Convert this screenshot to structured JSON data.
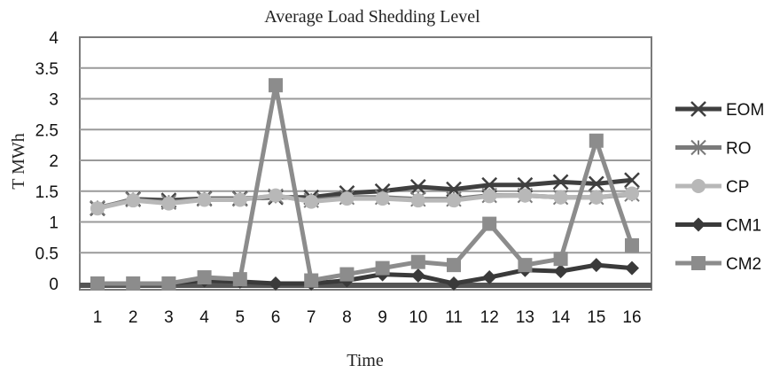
{
  "chart_data": {
    "type": "line",
    "title": "Average Load Shedding Level",
    "xlabel": "Time",
    "ylabel": "T MWh",
    "x": [
      "1",
      "2",
      "3",
      "4",
      "5",
      "6",
      "7",
      "8",
      "9",
      "10",
      "11",
      "12",
      "13",
      "14",
      "15",
      "16"
    ],
    "yticks": [
      "0",
      "0.5",
      "1",
      "1.5",
      "2",
      "2.5",
      "3",
      "3.5",
      "4"
    ],
    "ylim": [
      0,
      4
    ],
    "grid": true,
    "legend_position": "right",
    "series": [
      {
        "name": "EOM",
        "marker": "x",
        "color": "#3f3f3f",
        "values": [
          1.22,
          1.37,
          1.35,
          1.38,
          1.38,
          1.4,
          1.4,
          1.47,
          1.5,
          1.57,
          1.53,
          1.6,
          1.6,
          1.65,
          1.62,
          1.68
        ]
      },
      {
        "name": "RO",
        "marker": "star",
        "color": "#7a7a7a",
        "values": [
          1.23,
          1.36,
          1.32,
          1.37,
          1.37,
          1.42,
          1.35,
          1.4,
          1.4,
          1.37,
          1.37,
          1.43,
          1.43,
          1.4,
          1.4,
          1.45
        ]
      },
      {
        "name": "CP",
        "marker": "circle",
        "color": "#b8b8b8",
        "values": [
          1.22,
          1.35,
          1.3,
          1.36,
          1.36,
          1.43,
          1.33,
          1.38,
          1.38,
          1.35,
          1.35,
          1.42,
          1.43,
          1.4,
          1.4,
          1.46
        ]
      },
      {
        "name": "CM1",
        "marker": "diamond",
        "color": "#3a3a3a",
        "values": [
          0,
          0,
          0,
          0.05,
          0.03,
          0,
          0,
          0.05,
          0.15,
          0.13,
          0,
          0.1,
          0.22,
          0.2,
          0.3,
          0.25
        ]
      },
      {
        "name": "CM2",
        "marker": "square",
        "color": "#8c8c8c",
        "values": [
          0,
          0,
          0,
          0.1,
          0.07,
          3.22,
          0.05,
          0.15,
          0.25,
          0.35,
          0.3,
          0.97,
          0.3,
          0.4,
          2.32,
          0.62
        ]
      }
    ]
  }
}
